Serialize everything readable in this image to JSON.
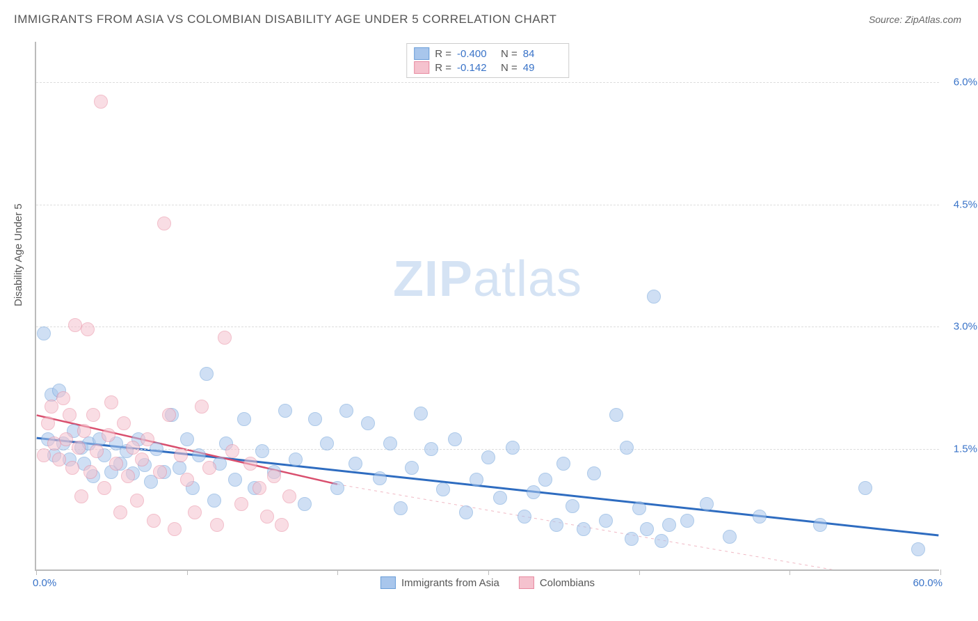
{
  "title": "IMMIGRANTS FROM ASIA VS COLOMBIAN DISABILITY AGE UNDER 5 CORRELATION CHART",
  "source_label": "Source:",
  "source_name": "ZipAtlas.com",
  "y_axis_title": "Disability Age Under 5",
  "watermark": {
    "bold": "ZIP",
    "rest": "atlas"
  },
  "chart": {
    "type": "scatter",
    "xlim": [
      0,
      60
    ],
    "ylim": [
      0,
      6.5
    ],
    "xtick_positions": [
      0,
      10,
      20,
      30,
      40,
      50,
      60
    ],
    "x_label_min": "0.0%",
    "x_label_max": "60.0%",
    "y_gridlines": [
      {
        "y": 1.5,
        "label": "1.5%"
      },
      {
        "y": 3.0,
        "label": "3.0%"
      },
      {
        "y": 4.5,
        "label": "4.5%"
      },
      {
        "y": 6.0,
        "label": "6.0%"
      }
    ],
    "background_color": "#ffffff",
    "grid_color": "#dddddd",
    "axis_color": "#bbbbbb",
    "tick_label_color": "#3973c8",
    "marker_radius": 10,
    "marker_opacity": 0.55,
    "series": [
      {
        "name": "Immigrants from Asia",
        "fill_color": "#a8c6ec",
        "stroke_color": "#6a9ed8",
        "R": "-0.400",
        "N": "84",
        "trend_solid": {
          "x1": 0,
          "y1": 1.62,
          "x2": 60,
          "y2": 0.42,
          "color": "#2e6cc0",
          "width": 3
        },
        "points": [
          [
            0.5,
            2.9
          ],
          [
            0.8,
            1.6
          ],
          [
            1.0,
            2.15
          ],
          [
            1.2,
            1.4
          ],
          [
            1.5,
            2.2
          ],
          [
            1.8,
            1.55
          ],
          [
            2.2,
            1.35
          ],
          [
            2.5,
            1.7
          ],
          [
            3.0,
            1.5
          ],
          [
            3.2,
            1.3
          ],
          [
            3.5,
            1.55
          ],
          [
            3.8,
            1.15
          ],
          [
            4.2,
            1.6
          ],
          [
            4.5,
            1.4
          ],
          [
            5.0,
            1.2
          ],
          [
            5.3,
            1.55
          ],
          [
            5.6,
            1.3
          ],
          [
            6.0,
            1.45
          ],
          [
            6.4,
            1.18
          ],
          [
            6.8,
            1.6
          ],
          [
            7.2,
            1.28
          ],
          [
            7.6,
            1.08
          ],
          [
            8.0,
            1.48
          ],
          [
            8.5,
            1.2
          ],
          [
            9.0,
            1.9
          ],
          [
            9.5,
            1.25
          ],
          [
            10.0,
            1.6
          ],
          [
            10.4,
            1.0
          ],
          [
            10.8,
            1.4
          ],
          [
            11.3,
            2.4
          ],
          [
            11.8,
            0.85
          ],
          [
            12.2,
            1.3
          ],
          [
            12.6,
            1.55
          ],
          [
            13.2,
            1.1
          ],
          [
            13.8,
            1.85
          ],
          [
            14.5,
            1.0
          ],
          [
            15.0,
            1.45
          ],
          [
            15.8,
            1.2
          ],
          [
            16.5,
            1.95
          ],
          [
            17.2,
            1.35
          ],
          [
            17.8,
            0.8
          ],
          [
            18.5,
            1.85
          ],
          [
            19.3,
            1.55
          ],
          [
            20.0,
            1.0
          ],
          [
            20.6,
            1.95
          ],
          [
            21.2,
            1.3
          ],
          [
            22.0,
            1.8
          ],
          [
            22.8,
            1.12
          ],
          [
            23.5,
            1.55
          ],
          [
            24.2,
            0.75
          ],
          [
            24.9,
            1.25
          ],
          [
            25.5,
            1.92
          ],
          [
            26.2,
            1.48
          ],
          [
            27.0,
            0.98
          ],
          [
            27.8,
            1.6
          ],
          [
            28.5,
            0.7
          ],
          [
            29.2,
            1.1
          ],
          [
            30.0,
            1.38
          ],
          [
            30.8,
            0.88
          ],
          [
            31.6,
            1.5
          ],
          [
            32.4,
            0.65
          ],
          [
            33.0,
            0.95
          ],
          [
            33.8,
            1.1
          ],
          [
            34.5,
            0.55
          ],
          [
            35.0,
            1.3
          ],
          [
            35.6,
            0.78
          ],
          [
            36.3,
            0.5
          ],
          [
            37.0,
            1.18
          ],
          [
            37.8,
            0.6
          ],
          [
            38.5,
            1.9
          ],
          [
            39.2,
            1.5
          ],
          [
            39.5,
            0.38
          ],
          [
            40.0,
            0.75
          ],
          [
            40.5,
            0.5
          ],
          [
            41.0,
            3.35
          ],
          [
            41.5,
            0.35
          ],
          [
            42.0,
            0.55
          ],
          [
            43.2,
            0.6
          ],
          [
            44.5,
            0.8
          ],
          [
            46.0,
            0.4
          ],
          [
            48.0,
            0.65
          ],
          [
            52.0,
            0.55
          ],
          [
            55.0,
            1.0
          ],
          [
            58.5,
            0.25
          ]
        ]
      },
      {
        "name": "Colombians",
        "fill_color": "#f5c2ce",
        "stroke_color": "#e88aa0",
        "R": "-0.142",
        "N": "49",
        "trend_solid": {
          "x1": 0,
          "y1": 1.9,
          "x2": 20,
          "y2": 1.05,
          "color": "#d94f6e",
          "width": 2.5
        },
        "trend_dashed": {
          "x1": 20,
          "y1": 1.05,
          "x2": 56,
          "y2": -0.1,
          "color": "#f0b8c4",
          "width": 1
        },
        "points": [
          [
            0.5,
            1.4
          ],
          [
            0.8,
            1.8
          ],
          [
            1.0,
            2.0
          ],
          [
            1.2,
            1.55
          ],
          [
            1.5,
            1.35
          ],
          [
            1.8,
            2.1
          ],
          [
            2.0,
            1.6
          ],
          [
            2.2,
            1.9
          ],
          [
            2.4,
            1.25
          ],
          [
            2.6,
            3.0
          ],
          [
            2.8,
            1.5
          ],
          [
            3.0,
            0.9
          ],
          [
            3.2,
            1.7
          ],
          [
            3.4,
            2.95
          ],
          [
            3.6,
            1.2
          ],
          [
            3.8,
            1.9
          ],
          [
            4.0,
            1.45
          ],
          [
            4.3,
            5.75
          ],
          [
            4.5,
            1.0
          ],
          [
            4.8,
            1.65
          ],
          [
            5.0,
            2.05
          ],
          [
            5.3,
            1.3
          ],
          [
            5.6,
            0.7
          ],
          [
            5.8,
            1.8
          ],
          [
            6.1,
            1.15
          ],
          [
            6.4,
            1.5
          ],
          [
            6.7,
            0.85
          ],
          [
            7.0,
            1.35
          ],
          [
            7.4,
            1.6
          ],
          [
            7.8,
            0.6
          ],
          [
            8.2,
            1.2
          ],
          [
            8.5,
            4.25
          ],
          [
            8.8,
            1.9
          ],
          [
            9.2,
            0.5
          ],
          [
            9.6,
            1.4
          ],
          [
            10.0,
            1.1
          ],
          [
            10.5,
            0.7
          ],
          [
            11.0,
            2.0
          ],
          [
            11.5,
            1.25
          ],
          [
            12.0,
            0.55
          ],
          [
            12.5,
            2.85
          ],
          [
            13.0,
            1.45
          ],
          [
            13.6,
            0.8
          ],
          [
            14.2,
            1.3
          ],
          [
            14.8,
            1.0
          ],
          [
            15.3,
            0.65
          ],
          [
            15.8,
            1.15
          ],
          [
            16.3,
            0.55
          ],
          [
            16.8,
            0.9
          ]
        ]
      }
    ]
  },
  "legend_bottom": [
    {
      "label": "Immigrants from Asia",
      "fill": "#a8c6ec",
      "stroke": "#6a9ed8"
    },
    {
      "label": "Colombians",
      "fill": "#f5c2ce",
      "stroke": "#e88aa0"
    }
  ],
  "stat_labels": {
    "R": "R =",
    "N": "N ="
  }
}
